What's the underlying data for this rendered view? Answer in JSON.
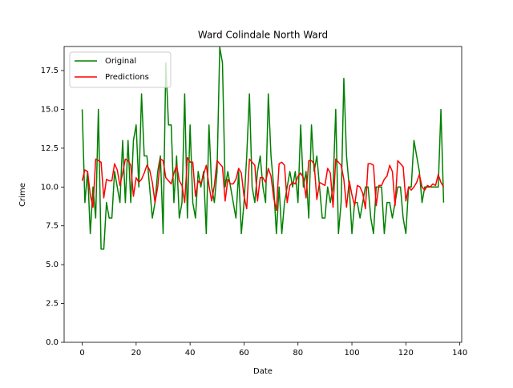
{
  "chart_data": {
    "type": "line",
    "title": "Ward Colindale North Ward",
    "xlabel": "Date",
    "ylabel": "Crime",
    "x": [
      0,
      1,
      2,
      3,
      4,
      5,
      6,
      7,
      8,
      9,
      10,
      11,
      12,
      13,
      14,
      15,
      16,
      17,
      18,
      19,
      20,
      21,
      22,
      23,
      24,
      25,
      26,
      27,
      28,
      29,
      30,
      31,
      32,
      33,
      34,
      35,
      36,
      37,
      38,
      39,
      40,
      41,
      42,
      43,
      44,
      45,
      46,
      47,
      48,
      49,
      50,
      51,
      52,
      53,
      54,
      55,
      56,
      57,
      58,
      59,
      60,
      61,
      62,
      63,
      64,
      65,
      66,
      67,
      68,
      69,
      70,
      71,
      72,
      73,
      74,
      75,
      76,
      77,
      78,
      79,
      80,
      81,
      82,
      83,
      84,
      85,
      86,
      87,
      88,
      89,
      90,
      91,
      92,
      93,
      94,
      95,
      96,
      97,
      98,
      99,
      100,
      101,
      102,
      103,
      104,
      105,
      106,
      107,
      108,
      109,
      110,
      111,
      112,
      113,
      114,
      115,
      116,
      117,
      118,
      119,
      120,
      121,
      122,
      123,
      124,
      125,
      126,
      127,
      128,
      129,
      130,
      131,
      132,
      133,
      134
    ],
    "series": [
      {
        "name": "Original",
        "color": "#008000",
        "values": [
          15,
          9,
          11,
          7,
          10,
          8,
          15,
          6,
          6,
          9,
          8,
          8,
          11,
          10,
          9,
          13,
          9,
          13,
          9,
          13,
          14,
          10,
          16,
          12,
          12,
          10,
          8,
          9,
          11,
          12,
          7,
          18,
          14,
          14,
          9,
          12,
          8,
          9,
          16,
          8,
          14,
          9,
          8,
          11,
          10,
          11,
          7,
          14,
          10,
          9,
          11,
          19,
          18,
          10,
          11,
          10,
          9,
          8,
          11,
          7,
          9,
          12,
          16,
          10,
          9,
          11,
          12,
          10,
          9,
          16,
          12,
          10,
          7,
          10,
          7,
          9,
          10,
          11,
          10,
          11,
          9,
          14,
          10,
          11,
          8,
          14,
          11,
          12,
          10,
          8,
          8,
          10,
          9,
          10,
          15,
          7,
          9,
          17,
          12,
          10,
          7,
          9,
          9,
          8,
          9,
          10,
          10,
          8,
          7,
          10,
          10,
          10,
          7,
          9,
          9,
          8,
          9,
          10,
          10,
          8,
          7,
          10,
          10,
          13,
          12,
          11,
          9,
          10,
          10,
          10,
          10,
          10,
          10,
          15,
          9
        ]
      },
      {
        "name": "Predictions",
        "color": "#ff0000",
        "values": [
          10.4,
          11.1,
          11.0,
          9.5,
          8.7,
          11.8,
          11.7,
          11.6,
          9.3,
          10.5,
          10.4,
          10.4,
          11.5,
          11.1,
          10.1,
          10.9,
          11.8,
          11.7,
          11.4,
          9.4,
          10.6,
          10.3,
          10.5,
          10.9,
          11.4,
          11.1,
          10.3,
          9.0,
          10.0,
          11.8,
          11.7,
          10.6,
          10.4,
          10.2,
          10.9,
          11.4,
          10.4,
          10.1,
          9.0,
          11.9,
          11.6,
          11.6,
          9.4,
          10.4,
          10.2,
          10.8,
          11.4,
          10.1,
          9.1,
          10.1,
          11.7,
          11.5,
          11.3,
          9.1,
          10.5,
          10.2,
          10.2,
          10.5,
          11.2,
          10.9,
          9.4,
          8.6,
          11.8,
          11.6,
          11.4,
          9.1,
          10.6,
          10.6,
          10.3,
          11.2,
          10.7,
          9.3,
          8.5,
          11.5,
          11.6,
          11.4,
          9.0,
          10.1,
          10.3,
          10.2,
          10.7,
          10.9,
          10.6,
          9.3,
          11.7,
          11.7,
          11.5,
          9.2,
          10.3,
          10.2,
          10.1,
          11.2,
          10.9,
          8.7,
          11.8,
          11.6,
          11.4,
          10.5,
          8.7,
          10.4,
          9.5,
          8.8,
          10.1,
          10.0,
          9.6,
          8.6,
          11.5,
          11.5,
          11.4,
          8.8,
          10.1,
          10.1,
          10.5,
          10.7,
          11.4,
          11.0,
          8.8,
          11.7,
          11.5,
          11.3,
          9.1,
          10.0,
          9.8,
          10.0,
          10.3,
          10.8,
          10.0,
          9.8,
          10.1,
          10.0,
          10.2,
          10.1,
          10.8,
          10.3,
          10.0
        ]
      }
    ],
    "xlim": [
      -6.7,
      140.7
    ],
    "xticks": [
      0,
      20,
      40,
      60,
      80,
      100,
      120,
      140
    ],
    "ylim": [
      0,
      19.05
    ],
    "yticks": [
      {
        "value": 0,
        "label": "0.0"
      },
      2.5,
      {
        "value": 5,
        "label": "5.0"
      },
      7.5,
      {
        "value": 10,
        "label": "10.0"
      },
      12.5,
      {
        "value": 15,
        "label": "15.0"
      },
      17.5
    ],
    "legend": "upper left"
  }
}
